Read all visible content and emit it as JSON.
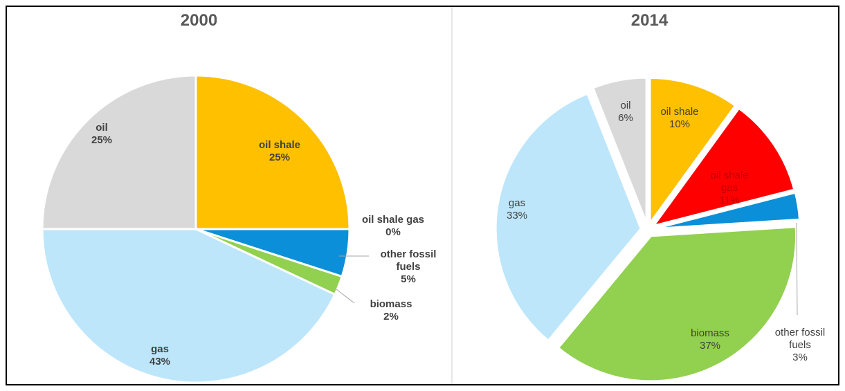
{
  "chart_data": [
    {
      "type": "pie",
      "title": "2000",
      "series": [
        {
          "categories": [
            "oil shale",
            "oil shale gas",
            "other fossil fuels",
            "biomass",
            "gas",
            "oil"
          ],
          "values": [
            25,
            0,
            5,
            2,
            43,
            25
          ]
        }
      ],
      "labels": [
        {
          "lines": [
            "oil shale",
            "25%"
          ]
        },
        {
          "lines": [
            "oil shale gas",
            "0%"
          ]
        },
        {
          "lines": [
            "other fossil",
            "fuels",
            "5%"
          ]
        },
        {
          "lines": [
            "biomass",
            "2%"
          ]
        },
        {
          "lines": [
            "gas",
            "43%"
          ]
        },
        {
          "lines": [
            "oil",
            "25%"
          ]
        }
      ],
      "colors": [
        "#FFC000",
        "#FF0000",
        "#0B8FD8",
        "#92D050",
        "#BDE6FA",
        "#D9D9D9"
      ],
      "start_angle_deg": 0,
      "exploded": false
    },
    {
      "type": "pie",
      "title": "2014",
      "series": [
        {
          "categories": [
            "oil shale",
            "oil shale gas",
            "other fossil fuels",
            "biomass",
            "gas",
            "oil"
          ],
          "values": [
            10,
            11,
            3,
            37,
            33,
            6
          ]
        }
      ],
      "labels": [
        {
          "lines": [
            "oil shale",
            "10%"
          ]
        },
        {
          "lines": [
            "oil shale",
            "gas",
            "11%"
          ]
        },
        {
          "lines": [
            "other fossil",
            "fuels",
            "3%"
          ]
        },
        {
          "lines": [
            "biomass",
            "37%"
          ]
        },
        {
          "lines": [
            "gas",
            "33%"
          ]
        },
        {
          "lines": [
            "oil",
            "6%"
          ]
        }
      ],
      "colors": [
        "#FFC000",
        "#FF0000",
        "#0B8FD8",
        "#92D050",
        "#BDE6FA",
        "#D9D9D9"
      ],
      "start_angle_deg": 0,
      "exploded": true
    }
  ]
}
